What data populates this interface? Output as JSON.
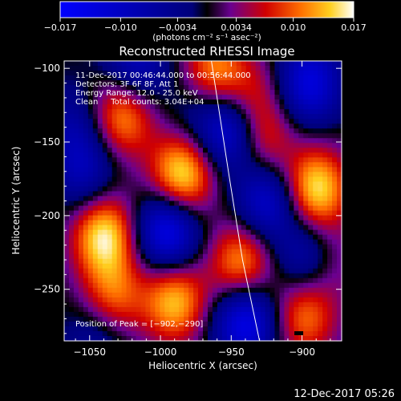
{
  "chart_data": {
    "type": "heatmap",
    "title": "Reconstructed RHESSI Image",
    "xlabel": "Heliocentric X (arcsec)",
    "ylabel": "Heliocentric Y (arcsec)",
    "xlim": [
      -1068,
      -872
    ],
    "ylim": [
      -285,
      -95
    ],
    "xticks": [
      -1050,
      -1000,
      -950,
      -900
    ],
    "yticks": [
      -100,
      -150,
      -200,
      -250
    ],
    "xtick_labels": [
      "−1050",
      "−1000",
      "−950",
      "−900"
    ],
    "ytick_labels": [
      "−100",
      "−150",
      "−200",
      "−250"
    ],
    "colorbar": {
      "range": [
        -0.017,
        0.017
      ],
      "ticks": [
        -0.017,
        -0.01,
        -0.0034,
        0.0034,
        0.01,
        0.017
      ],
      "tick_labels": [
        "−0.017",
        "−0.010",
        "−0.0034",
        "0.0034",
        "0.010",
        "0.017"
      ],
      "unit_label": "(photons cm⁻² s⁻¹ asec⁻²)"
    },
    "info_lines": [
      "11-Dec-2017 00:46:44.000 to 00:56:44.000",
      "Detectors: 3F 6F 8F, Att 1",
      "Energy Range: 12.0 - 25.0 keV",
      "Clean     Total counts: 3.04E+04"
    ],
    "peak_label": "Position of Peak = [−902,−290]",
    "peak_position": [
      -902,
      -290
    ],
    "footer_timestamp": "12-Dec-2017 05:26",
    "blobs": [
      {
        "x": -1040,
        "y": -213,
        "v": 0.016
      },
      {
        "x": -1027,
        "y": -132,
        "v": 0.013
      },
      {
        "x": -1033,
        "y": -255,
        "v": 0.01
      },
      {
        "x": -985,
        "y": -173,
        "v": 0.017
      },
      {
        "x": -990,
        "y": -258,
        "v": 0.014
      },
      {
        "x": -962,
        "y": -102,
        "v": 0.012
      },
      {
        "x": -943,
        "y": -232,
        "v": 0.013
      },
      {
        "x": -928,
        "y": -150,
        "v": 0.009
      },
      {
        "x": -935,
        "y": -120,
        "v": 0.007
      },
      {
        "x": -890,
        "y": -182,
        "v": 0.016
      },
      {
        "x": -898,
        "y": -268,
        "v": 0.011
      },
      {
        "x": -880,
        "y": -230,
        "v": 0.006
      },
      {
        "x": -1053,
        "y": -172,
        "v": -0.008
      },
      {
        "x": -1060,
        "y": -140,
        "v": -0.006
      },
      {
        "x": -1018,
        "y": -98,
        "v": -0.01
      },
      {
        "x": -995,
        "y": -210,
        "v": -0.016
      },
      {
        "x": -950,
        "y": -142,
        "v": -0.014
      },
      {
        "x": -925,
        "y": -190,
        "v": -0.012
      },
      {
        "x": -940,
        "y": -272,
        "v": -0.015
      },
      {
        "x": -895,
        "y": -110,
        "v": -0.013
      },
      {
        "x": -895,
        "y": -228,
        "v": -0.01
      },
      {
        "x": -1045,
        "y": -285,
        "v": -0.006
      },
      {
        "x": -975,
        "y": -130,
        "v": -0.004
      }
    ],
    "limb_line": [
      [
        -964,
        -95
      ],
      [
        -952,
        -170
      ],
      [
        -942,
        -230
      ],
      [
        -930,
        -285
      ]
    ],
    "grid": false
  }
}
